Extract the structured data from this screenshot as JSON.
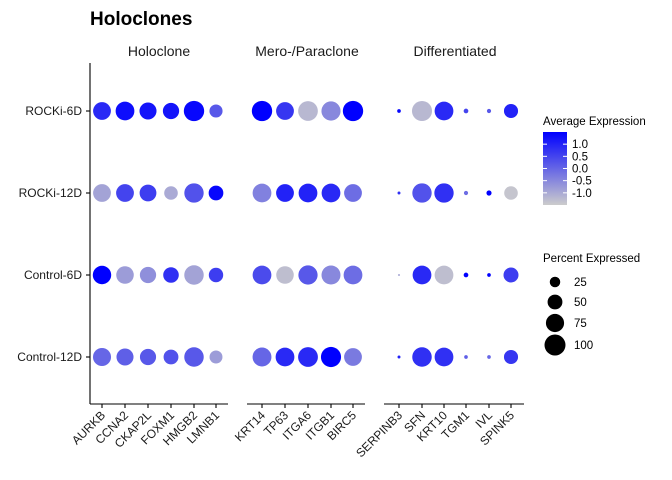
{
  "chart_data": {
    "type": "scatter",
    "title": "Holoclones",
    "rows": [
      "ROCKi-6D",
      "ROCKi-12D",
      "Control-6D",
      "Control-12D"
    ],
    "facets": [
      {
        "name": "Holoclone",
        "genes": [
          "AURKB",
          "CCNA2",
          "CKAP2L",
          "FOXM1",
          "HMGB2",
          "LMNB1"
        ]
      },
      {
        "name": "Mero-/Paraclone",
        "genes": [
          "KRT14",
          "TP63",
          "ITGA6",
          "ITGB1",
          "BIRC5"
        ]
      },
      {
        "name": "Differentiated",
        "genes": [
          "SERPINB3",
          "SFN",
          "KRT10",
          "TGM1",
          "IVL",
          "SPINK5"
        ]
      }
    ],
    "average_expression": {
      "ROCKi-6D": [
        0.9,
        1.3,
        1.2,
        1.2,
        1.4,
        0.2,
        1.5,
        0.7,
        -1.2,
        -0.5,
        1.5,
        1.4,
        -1.2,
        0.9,
        0.5,
        0.2,
        1.0
      ],
      "ROCKi-12D": [
        -0.9,
        0.5,
        0.6,
        -1.0,
        0.3,
        1.4,
        -0.4,
        1.0,
        1.0,
        0.9,
        -0.1,
        0.8,
        0.3,
        0.8,
        -0.1,
        1.5,
        -1.4
      ],
      "Control-6D": [
        1.5,
        -0.8,
        -0.6,
        0.8,
        -0.9,
        0.6,
        0.4,
        -1.3,
        0.2,
        -0.5,
        -0.1,
        -1.0,
        0.9,
        -1.3,
        1.5,
        1.5,
        0.6
      ],
      "Control-12D": [
        0.0,
        0.1,
        0.2,
        0.3,
        0.2,
        -0.8,
        0.0,
        0.9,
        0.9,
        1.5,
        -0.3,
        1.0,
        0.8,
        0.8,
        0.1,
        0.0,
        0.7
      ]
    },
    "percent_expressed": {
      "ROCKi-6D": [
        72,
        80,
        66,
        60,
        94,
        39,
        94,
        72,
        88,
        83,
        94,
        3,
        91,
        80,
        5,
        4,
        45
      ],
      "ROCKi-12D": [
        72,
        72,
        64,
        42,
        85,
        49,
        80,
        72,
        80,
        80,
        72,
        2,
        85,
        85,
        4,
        6,
        42
      ],
      "Control-6D": [
        77,
        70,
        60,
        55,
        86,
        47,
        80,
        70,
        84,
        82,
        80,
        1,
        80,
        80,
        5,
        3,
        51
      ],
      "Control-12D": [
        74,
        66,
        59,
        50,
        86,
        38,
        81,
        80,
        89,
        92,
        72,
        2,
        86,
        80,
        3,
        3,
        45
      ]
    },
    "color_scale": {
      "low": "#cccccc",
      "high": "#0000ff",
      "domain": [
        -1.5,
        1.5
      ]
    },
    "size_scale": {
      "domain": [
        0,
        100
      ]
    },
    "legend": {
      "position": "right",
      "color_title": "Average Expression",
      "color_breaks": [
        "1.0",
        "0.5",
        "0.0",
        "-0.5",
        "-1.0"
      ],
      "color_break_values": [
        1.0,
        0.5,
        0.0,
        -0.5,
        -1.0
      ],
      "size_title": "Percent Expressed",
      "size_breaks": [
        "25",
        "50",
        "75",
        "100"
      ],
      "size_break_values": [
        25,
        50,
        75,
        100
      ]
    },
    "grid": false
  }
}
